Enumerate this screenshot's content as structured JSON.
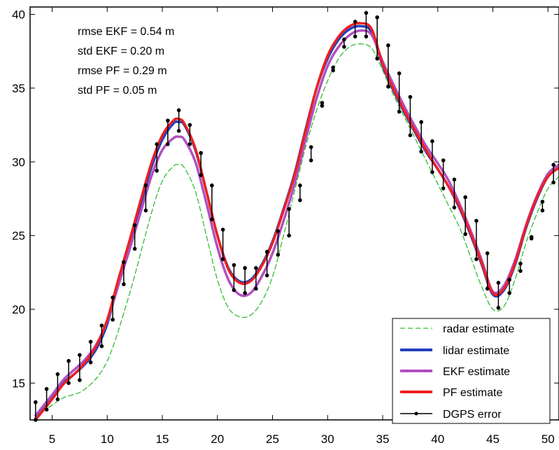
{
  "chart_data": {
    "type": "line",
    "title": "",
    "xlabel": "",
    "ylabel": "",
    "xlim": [
      3,
      51
    ],
    "ylim": [
      12.5,
      40.5
    ],
    "xticks": [
      5,
      10,
      15,
      20,
      25,
      30,
      35,
      40,
      45,
      50
    ],
    "yticks": [
      15,
      20,
      25,
      30,
      35,
      40
    ],
    "grid": false,
    "legend_position": "bottom-right",
    "annotations": [
      "rmse EKF = 0.54 m",
      "std EKF =  0.20 m",
      "rmse PF = 0.29 m",
      "std PF =  0.05 m"
    ],
    "series": [
      {
        "name": "radar estimate",
        "color": "#33bb33",
        "style": "dashed",
        "x": [
          3.5,
          5,
          6,
          8,
          10,
          12,
          14,
          15,
          16,
          16.5,
          17,
          18,
          19,
          20,
          21,
          22,
          23,
          24,
          25,
          26,
          27,
          28,
          29,
          30,
          31,
          32,
          33,
          34,
          35,
          36,
          37,
          38,
          39,
          40,
          41,
          42,
          43,
          44,
          45,
          46,
          47,
          48,
          49,
          50,
          51
        ],
        "y": [
          12.8,
          13.5,
          14.0,
          14.6,
          16.5,
          21.0,
          26.5,
          28.7,
          29.7,
          29.8,
          29.6,
          28.0,
          25.0,
          22.0,
          20.1,
          19.5,
          19.6,
          20.5,
          22.2,
          25.0,
          28.0,
          31.0,
          33.5,
          35.5,
          37.0,
          37.8,
          38.0,
          37.7,
          36.2,
          34.5,
          33.0,
          31.5,
          30.0,
          28.5,
          27.0,
          25.5,
          23.5,
          21.5,
          20.0,
          20.2,
          22.0,
          24.5,
          26.5,
          28.2,
          29.0
        ]
      },
      {
        "name": "lidar estimate",
        "color": "#2040c0",
        "style": "solid",
        "x": [
          3.5,
          5,
          6,
          7,
          8,
          9,
          10,
          11,
          12,
          13,
          14,
          15,
          16,
          16.5,
          17,
          18,
          19,
          20,
          21,
          22,
          23,
          24,
          25,
          26,
          27,
          28,
          29,
          30,
          31,
          32,
          33,
          34,
          35,
          36,
          37,
          38,
          39,
          40,
          41,
          42,
          43,
          44,
          45,
          46,
          47,
          48,
          49,
          50,
          51
        ],
        "y": [
          12.6,
          14.0,
          15.0,
          15.6,
          16.3,
          17.3,
          19.0,
          21.8,
          24.3,
          27.0,
          29.6,
          31.5,
          32.6,
          32.7,
          32.5,
          30.8,
          28.0,
          25.0,
          22.8,
          21.9,
          22.0,
          23.0,
          24.6,
          26.8,
          29.2,
          32.2,
          35.0,
          37.0,
          38.3,
          39.0,
          39.2,
          38.8,
          36.5,
          34.8,
          33.3,
          31.9,
          30.6,
          29.5,
          28.3,
          26.8,
          25.0,
          23.0,
          21.0,
          21.3,
          23.0,
          25.5,
          27.5,
          29.0,
          29.6
        ]
      },
      {
        "name": "EKF estimate",
        "color": "#b050c0",
        "style": "solid",
        "x": [
          3.5,
          5,
          6,
          7,
          8,
          9,
          10,
          11,
          12,
          13,
          14,
          15,
          16,
          16.5,
          17,
          18,
          19,
          20,
          21,
          22,
          23,
          24,
          25,
          26,
          27,
          28,
          29,
          30,
          31,
          32,
          33,
          34,
          35,
          36,
          37,
          38,
          39,
          40,
          41,
          42,
          43,
          44,
          45,
          46,
          47,
          48,
          49,
          50,
          51
        ],
        "y": [
          12.8,
          14.2,
          15.2,
          15.9,
          16.6,
          17.6,
          19.2,
          21.6,
          24.0,
          26.5,
          29.0,
          30.8,
          31.6,
          31.7,
          31.5,
          30.0,
          27.2,
          24.2,
          22.0,
          21.0,
          21.1,
          22.2,
          23.8,
          26.0,
          28.5,
          31.5,
          34.3,
          36.5,
          37.8,
          38.6,
          38.9,
          38.6,
          36.8,
          35.2,
          33.7,
          32.3,
          31.0,
          29.9,
          28.7,
          27.1,
          25.3,
          23.3,
          21.2,
          21.6,
          23.3,
          25.7,
          27.7,
          29.2,
          29.8
        ]
      },
      {
        "name": "PF estimate",
        "color": "#ee2020",
        "style": "solid",
        "x": [
          3.5,
          5,
          6,
          7,
          8,
          9,
          10,
          11,
          12,
          13,
          14,
          15,
          16,
          16.5,
          17,
          18,
          19,
          20,
          21,
          22,
          23,
          24,
          25,
          26,
          27,
          28,
          29,
          30,
          31,
          32,
          33,
          34,
          35,
          36,
          37,
          38,
          39,
          40,
          41,
          42,
          43,
          44,
          45,
          46,
          47,
          48,
          49,
          50,
          51
        ],
        "y": [
          12.5,
          13.9,
          14.9,
          15.6,
          16.4,
          17.5,
          19.3,
          22.0,
          24.6,
          27.3,
          29.9,
          31.8,
          32.8,
          32.9,
          32.6,
          30.9,
          28.0,
          25.0,
          22.7,
          21.8,
          21.9,
          22.9,
          24.5,
          26.7,
          29.1,
          32.1,
          35.0,
          37.2,
          38.5,
          39.2,
          39.4,
          39.0,
          36.6,
          34.9,
          33.4,
          32.0,
          30.7,
          29.5,
          28.3,
          26.9,
          25.1,
          23.1,
          21.1,
          21.4,
          23.1,
          25.6,
          27.6,
          29.0,
          29.6
        ]
      },
      {
        "name": "DGPS error",
        "color": "#000000",
        "style": "errorbar",
        "x": [
          3.5,
          4.5,
          5.5,
          6.5,
          7.5,
          8.5,
          9.5,
          10.5,
          11.5,
          12.5,
          13.5,
          14.5,
          15.5,
          16.5,
          17.5,
          18.5,
          19.5,
          20.5,
          21.5,
          22.5,
          23.5,
          24.5,
          25.5,
          26.5,
          27.5,
          28.5,
          29.5,
          30.5,
          31.5,
          32.5,
          33.5,
          34.5,
          35.5,
          36.5,
          37.5,
          38.5,
          39.5,
          40.5,
          41.5,
          42.5,
          43.5,
          44.5,
          45.5,
          46.5,
          47.5,
          48.5,
          49.5,
          50.5
        ],
        "lower": [
          12.5,
          13.2,
          13.9,
          15.0,
          15.2,
          16.4,
          17.5,
          19.3,
          21.7,
          24.1,
          26.7,
          29.4,
          31.2,
          32.1,
          31.2,
          29.1,
          26.1,
          23.4,
          21.3,
          21.1,
          21.4,
          22.3,
          23.7,
          25.0,
          27.4,
          30.1,
          33.8,
          36.2,
          37.8,
          38.5,
          38.5,
          37.0,
          35.1,
          33.4,
          31.8,
          30.7,
          29.3,
          28.2,
          26.9,
          25.1,
          23.4,
          21.4,
          20.1,
          21.1,
          22.6,
          24.8,
          26.7,
          28.6
        ],
        "upper": [
          13.7,
          14.6,
          15.6,
          16.5,
          16.9,
          17.8,
          18.9,
          20.8,
          23.2,
          25.7,
          28.4,
          31.2,
          32.8,
          33.5,
          32.5,
          30.6,
          28.4,
          25.4,
          23.0,
          22.8,
          22.8,
          23.9,
          25.3,
          26.8,
          28.4,
          31.0,
          34.0,
          36.4,
          38.3,
          39.5,
          40.1,
          39.8,
          37.9,
          36.0,
          34.4,
          32.7,
          31.4,
          30.1,
          28.8,
          27.6,
          26.0,
          23.8,
          21.8,
          22.0,
          23.1,
          24.9,
          27.3,
          29.8
        ]
      }
    ]
  }
}
